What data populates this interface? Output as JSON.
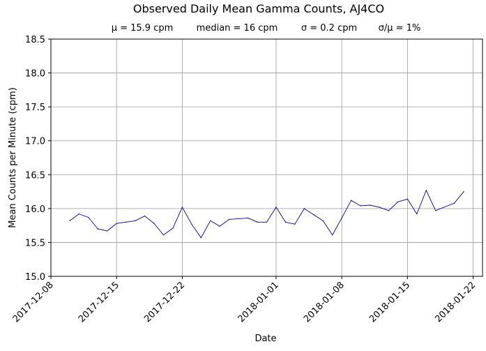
{
  "chart_data": {
    "type": "line",
    "title": "Observed Daily Mean Gamma Counts, AJ4CO",
    "subtitle_items": [
      "μ = 15.9 cpm",
      "median = 16 cpm",
      "σ = 0.2 cpm",
      "σ/μ = 1%"
    ],
    "xlabel": "Date",
    "ylabel": "Mean Counts per Minute (cpm)",
    "xlim": [
      "2017-12-08",
      "2018-01-23"
    ],
    "ylim": [
      15.0,
      18.5
    ],
    "x_ticks": [
      "2017-12-08",
      "2017-12-15",
      "2017-12-22",
      "2018-01-01",
      "2018-01-08",
      "2018-01-15",
      "2018-01-22"
    ],
    "y_ticks": [
      "15.0",
      "15.5",
      "16.0",
      "16.5",
      "17.0",
      "17.5",
      "18.0",
      "18.5"
    ],
    "grid": true,
    "colors": {
      "line": "#00008b",
      "grid": "#999999",
      "axes": "#000000"
    },
    "series": [
      {
        "x": [
          "2017-12-10",
          "2017-12-11",
          "2017-12-12",
          "2017-12-13",
          "2017-12-14",
          "2017-12-15",
          "2017-12-16",
          "2017-12-17",
          "2017-12-18",
          "2017-12-19",
          "2017-12-20",
          "2017-12-21",
          "2017-12-22",
          "2017-12-23",
          "2017-12-24",
          "2017-12-25",
          "2017-12-26",
          "2017-12-27",
          "2017-12-29",
          "2017-12-30",
          "2017-12-31",
          "2018-01-01",
          "2018-01-02",
          "2018-01-03",
          "2018-01-04",
          "2018-01-05",
          "2018-01-06",
          "2018-01-07",
          "2018-01-08",
          "2018-01-09",
          "2018-01-10",
          "2018-01-11",
          "2018-01-12",
          "2018-01-13",
          "2018-01-14",
          "2018-01-15",
          "2018-01-16",
          "2018-01-17",
          "2018-01-18",
          "2018-01-20",
          "2018-01-21"
        ],
        "y": [
          15.82,
          15.92,
          15.87,
          15.7,
          15.67,
          15.78,
          15.8,
          15.82,
          15.89,
          15.78,
          15.61,
          15.71,
          16.02,
          15.77,
          15.57,
          15.82,
          15.74,
          15.84,
          15.86,
          15.8,
          15.8,
          16.02,
          15.8,
          15.77,
          16.0,
          15.91,
          15.82,
          15.61,
          15.86,
          16.12,
          16.04,
          16.05,
          16.02,
          15.97,
          16.1,
          16.14,
          15.92,
          16.27,
          15.97,
          16.08,
          16.25
        ]
      }
    ]
  }
}
